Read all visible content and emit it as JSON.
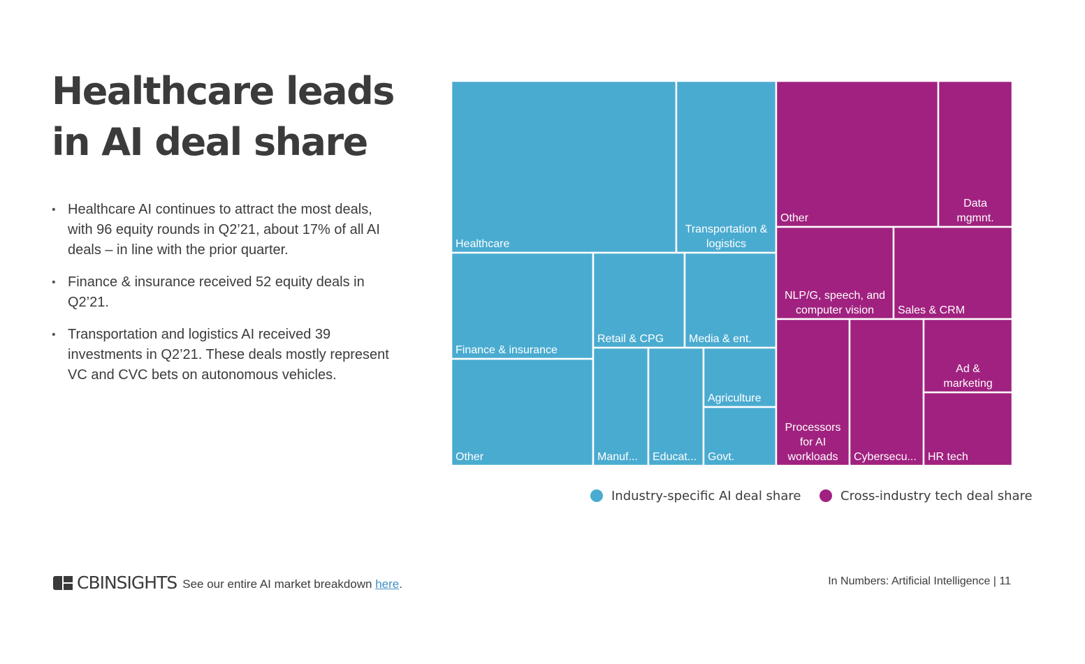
{
  "title": "Healthcare leads in AI deal share",
  "bullets": [
    "Healthcare AI continues to attract the most deals, with 96 equity rounds in Q2’21, about 17% of all AI deals – in line with the prior quarter.",
    "Finance & insurance received 52 equity deals in Q2’21.",
    "Transportation and logistics AI received 39 investments in Q2’21. These deals mostly represent VC and CVC bets on autonomous vehicles."
  ],
  "colors": {
    "industry": "#4aabd0",
    "cross": "#a0217f"
  },
  "chart_data": {
    "type": "treemap",
    "groups": [
      {
        "name": "Industry-specific AI deal share",
        "color": "#4aabd0",
        "tiles": [
          {
            "label": [
              "Healthcare"
            ],
            "align": "left"
          },
          {
            "label": [
              "Transportation &",
              "logistics"
            ],
            "align": "center"
          },
          {
            "label": [
              "Finance & insurance"
            ],
            "align": "left"
          },
          {
            "label": [
              "Other"
            ],
            "align": "left"
          },
          {
            "label": [
              "Retail & CPG"
            ],
            "align": "left"
          },
          {
            "label": [
              "Media & ent."
            ],
            "align": "left"
          },
          {
            "label": [
              "Manuf..."
            ],
            "align": "left"
          },
          {
            "label": [
              "Educat..."
            ],
            "align": "left"
          },
          {
            "label": [
              "Agriculture"
            ],
            "align": "left"
          },
          {
            "label": [
              "Govt."
            ],
            "align": "left"
          }
        ]
      },
      {
        "name": "Cross-industry tech deal share",
        "color": "#a0217f",
        "tiles": [
          {
            "label": [
              "Other"
            ],
            "align": "left"
          },
          {
            "label": [
              "Data",
              "mgmnt."
            ],
            "align": "center"
          },
          {
            "label": [
              "NLP/G, speech, and",
              "computer vision"
            ],
            "align": "center"
          },
          {
            "label": [
              "Sales & CRM"
            ],
            "align": "left"
          },
          {
            "label": [
              "Processors",
              "for AI",
              "workloads"
            ],
            "align": "center"
          },
          {
            "label": [
              "Cybersecu..."
            ],
            "align": "left"
          },
          {
            "label": [
              "Ad &",
              "marketing"
            ],
            "align": "center"
          },
          {
            "label": [
              "HR tech"
            ],
            "align": "left"
          }
        ]
      }
    ],
    "legend": [
      "Industry-specific AI deal share",
      "Cross-industry tech deal share"
    ],
    "legend_position": "bottom"
  },
  "footer": {
    "brand": "CBINSIGHTS",
    "note": "See our entire AI market breakdown ",
    "link": "here",
    "note_end": ".",
    "right": "In Numbers: Artificial Intelligence | 11"
  }
}
